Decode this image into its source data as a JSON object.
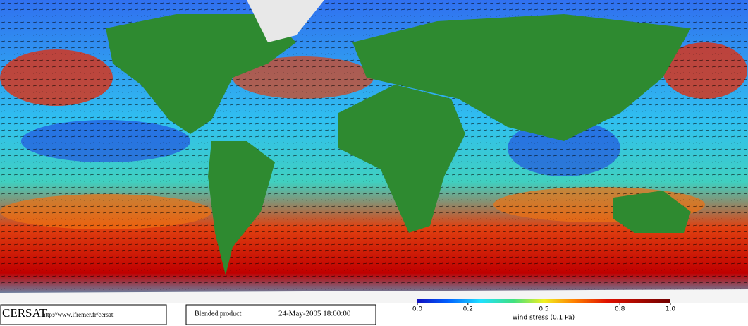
{
  "logo": "CERSAT",
  "url": "http://www.ifremer.fr/cersat",
  "product": "Blended product",
  "date": "24-May-2005 18:00:00",
  "colorbar": {
    "label": "wind stress (0.1 Pa)",
    "lim": [
      0,
      1
    ],
    "ticks": [
      {
        "value": 0,
        "label": "0.0"
      },
      0.2,
      0.5,
      0.8,
      {
        "value": 1,
        "label": "1.0"
      }
    ]
  }
}
